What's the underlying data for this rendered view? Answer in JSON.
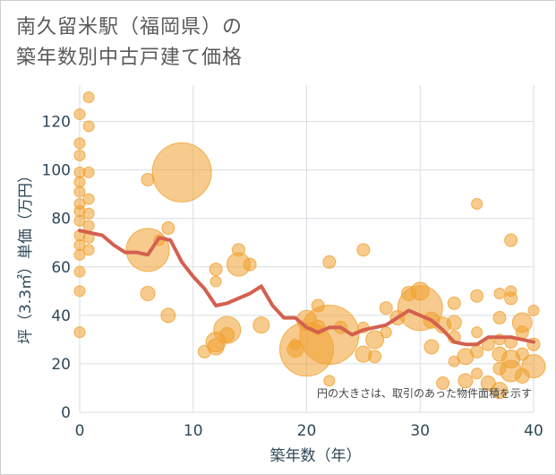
{
  "page": {
    "title_line1": "南久留米駅（福岡県）の",
    "title_line2": "築年数別中古戸建て価格"
  },
  "chart_data": {
    "type": "scatter",
    "title": "南久留米駅（福岡県）の築年数別中古戸建て価格",
    "xlabel": "築年数（年）",
    "ylabel": "坪（3.3㎡）単価（万円）",
    "xlim": [
      0,
      40
    ],
    "ylim": [
      0,
      135
    ],
    "xticks": [
      0,
      10,
      20,
      30,
      40
    ],
    "yticks": [
      0,
      20,
      40,
      60,
      80,
      100,
      120
    ],
    "grid": true,
    "note": "円の大きさは、取引のあった物件面積を示す",
    "colors": {
      "bubble": "#f0a030",
      "line": "#d4604f",
      "grid": "#d8dde3",
      "text": "#2f4858"
    },
    "series": [
      {
        "type": "bubble",
        "points": [
          {
            "x": 0,
            "y": 123,
            "s": 6
          },
          {
            "x": 0,
            "y": 111,
            "s": 6
          },
          {
            "x": 0,
            "y": 106,
            "s": 6
          },
          {
            "x": 0,
            "y": 99,
            "s": 6
          },
          {
            "x": 0,
            "y": 95,
            "s": 6
          },
          {
            "x": 0,
            "y": 91,
            "s": 6
          },
          {
            "x": 0,
            "y": 86,
            "s": 6
          },
          {
            "x": 0,
            "y": 83,
            "s": 6
          },
          {
            "x": 0,
            "y": 79,
            "s": 6
          },
          {
            "x": 0,
            "y": 73,
            "s": 6
          },
          {
            "x": 0,
            "y": 69,
            "s": 6
          },
          {
            "x": 0,
            "y": 65,
            "s": 6
          },
          {
            "x": 0,
            "y": 58,
            "s": 6
          },
          {
            "x": 0,
            "y": 50,
            "s": 6
          },
          {
            "x": 0,
            "y": 33,
            "s": 6
          },
          {
            "x": 0.8,
            "y": 130,
            "s": 6
          },
          {
            "x": 0.8,
            "y": 118,
            "s": 6
          },
          {
            "x": 0.8,
            "y": 99,
            "s": 6
          },
          {
            "x": 0.8,
            "y": 88,
            "s": 6
          },
          {
            "x": 0.8,
            "y": 82,
            "s": 6
          },
          {
            "x": 0.8,
            "y": 77,
            "s": 6
          },
          {
            "x": 0.8,
            "y": 72,
            "s": 6
          },
          {
            "x": 0.8,
            "y": 67,
            "s": 6
          },
          {
            "x": 6,
            "y": 96,
            "s": 7
          },
          {
            "x": 6,
            "y": 67,
            "s": 24
          },
          {
            "x": 6,
            "y": 49,
            "s": 8
          },
          {
            "x": 7,
            "y": 71,
            "s": 6
          },
          {
            "x": 7.8,
            "y": 76,
            "s": 7
          },
          {
            "x": 7.8,
            "y": 40,
            "s": 8
          },
          {
            "x": 9,
            "y": 99,
            "s": 33
          },
          {
            "x": 11,
            "y": 25,
            "s": 7
          },
          {
            "x": 12,
            "y": 59,
            "s": 7
          },
          {
            "x": 12,
            "y": 54,
            "s": 6
          },
          {
            "x": 12,
            "y": 29,
            "s": 11
          },
          {
            "x": 12,
            "y": 27,
            "s": 9
          },
          {
            "x": 13,
            "y": 34,
            "s": 15
          },
          {
            "x": 13,
            "y": 32,
            "s": 8
          },
          {
            "x": 14,
            "y": 67,
            "s": 7
          },
          {
            "x": 14,
            "y": 61,
            "s": 13
          },
          {
            "x": 15,
            "y": 61,
            "s": 7
          },
          {
            "x": 16,
            "y": 36,
            "s": 9
          },
          {
            "x": 19,
            "y": 28,
            "s": 6
          },
          {
            "x": 19,
            "y": 26,
            "s": 9
          },
          {
            "x": 20,
            "y": 38,
            "s": 11
          },
          {
            "x": 20,
            "y": 26,
            "s": 30
          },
          {
            "x": 21,
            "y": 44,
            "s": 7
          },
          {
            "x": 21,
            "y": 35,
            "s": 8
          },
          {
            "x": 22,
            "y": 62,
            "s": 7
          },
          {
            "x": 22,
            "y": 32,
            "s": 33
          },
          {
            "x": 22,
            "y": 13,
            "s": 6
          },
          {
            "x": 23,
            "y": 35,
            "s": 7
          },
          {
            "x": 25,
            "y": 67,
            "s": 7
          },
          {
            "x": 25,
            "y": 35,
            "s": 6
          },
          {
            "x": 25,
            "y": 24,
            "s": 9
          },
          {
            "x": 26,
            "y": 30,
            "s": 10
          },
          {
            "x": 26,
            "y": 23,
            "s": 7
          },
          {
            "x": 27,
            "y": 43,
            "s": 7
          },
          {
            "x": 27,
            "y": 33,
            "s": 6
          },
          {
            "x": 28,
            "y": 39,
            "s": 8
          },
          {
            "x": 29,
            "y": 49,
            "s": 8
          },
          {
            "x": 30,
            "y": 50,
            "s": 10
          },
          {
            "x": 30,
            "y": 43,
            "s": 25
          },
          {
            "x": 31,
            "y": 38,
            "s": 9
          },
          {
            "x": 31,
            "y": 27,
            "s": 8
          },
          {
            "x": 32,
            "y": 36,
            "s": 9
          },
          {
            "x": 32,
            "y": 12,
            "s": 7
          },
          {
            "x": 33,
            "y": 45,
            "s": 7
          },
          {
            "x": 33,
            "y": 37,
            "s": 8
          },
          {
            "x": 33,
            "y": 31,
            "s": 7
          },
          {
            "x": 33,
            "y": 21,
            "s": 6
          },
          {
            "x": 34,
            "y": 23,
            "s": 9
          },
          {
            "x": 34,
            "y": 13,
            "s": 8
          },
          {
            "x": 35,
            "y": 86,
            "s": 6
          },
          {
            "x": 35,
            "y": 48,
            "s": 7
          },
          {
            "x": 35,
            "y": 33,
            "s": 6
          },
          {
            "x": 35,
            "y": 25,
            "s": 7
          },
          {
            "x": 35,
            "y": 16,
            "s": 6
          },
          {
            "x": 36,
            "y": 28,
            "s": 7
          },
          {
            "x": 36,
            "y": 12,
            "s": 8
          },
          {
            "x": 37,
            "y": 49,
            "s": 6
          },
          {
            "x": 37,
            "y": 39,
            "s": 7
          },
          {
            "x": 37,
            "y": 30,
            "s": 6
          },
          {
            "x": 37,
            "y": 24,
            "s": 8
          },
          {
            "x": 37,
            "y": 18,
            "s": 7
          },
          {
            "x": 37,
            "y": 9,
            "s": 9
          },
          {
            "x": 38,
            "y": 71,
            "s": 7
          },
          {
            "x": 38,
            "y": 50,
            "s": 6
          },
          {
            "x": 38,
            "y": 47,
            "s": 7
          },
          {
            "x": 38,
            "y": 29,
            "s": 7
          },
          {
            "x": 38,
            "y": 22,
            "s": 10
          },
          {
            "x": 38,
            "y": 17,
            "s": 12
          },
          {
            "x": 39,
            "y": 37,
            "s": 11
          },
          {
            "x": 39,
            "y": 33,
            "s": 7
          },
          {
            "x": 39,
            "y": 24,
            "s": 7
          },
          {
            "x": 39,
            "y": 15,
            "s": 8
          },
          {
            "x": 40,
            "y": 42,
            "s": 6
          },
          {
            "x": 40,
            "y": 28,
            "s": 7
          },
          {
            "x": 40,
            "y": 19,
            "s": 13
          }
        ]
      },
      {
        "type": "line",
        "x": [
          0,
          1,
          2,
          3,
          4,
          5,
          6,
          7,
          8,
          9,
          10,
          11,
          12,
          13,
          14,
          15,
          16,
          17,
          18,
          19,
          20,
          21,
          22,
          23,
          24,
          25,
          26,
          27,
          28,
          29,
          30,
          31,
          32,
          33,
          34,
          35,
          36,
          37,
          38,
          39,
          40
        ],
        "y": [
          75,
          74,
          73,
          69,
          66,
          66,
          65,
          72,
          71,
          62,
          56,
          51,
          44,
          45,
          47,
          49,
          52,
          44,
          39,
          39,
          35,
          33,
          35,
          35,
          32,
          34,
          35,
          36,
          39,
          42,
          40,
          38,
          34,
          29,
          28,
          28,
          31,
          31,
          31,
          30,
          29
        ]
      }
    ]
  }
}
